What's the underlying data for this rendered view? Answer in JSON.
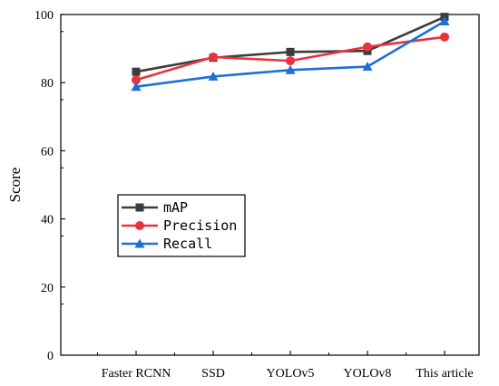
{
  "chart_data": {
    "type": "line",
    "categories": [
      "Faster RCNN",
      "SSD",
      "YOLOv5",
      "YOLOv8",
      "This article"
    ],
    "series": [
      {
        "name": "mAP",
        "values": [
          83.2,
          87.3,
          89.0,
          89.3,
          99.3
        ],
        "color": "#3c3c3c",
        "marker": "square"
      },
      {
        "name": "Precision",
        "values": [
          80.8,
          87.5,
          86.4,
          90.5,
          93.4
        ],
        "color": "#e8343c",
        "marker": "circle"
      },
      {
        "name": "Recall",
        "values": [
          78.8,
          81.8,
          83.7,
          84.7,
          98.0
        ],
        "color": "#1f6fd6",
        "marker": "triangle"
      }
    ],
    "xlabel": "",
    "ylabel": "Score",
    "ylim": [
      0,
      100
    ],
    "yticks": [
      0,
      20,
      40,
      60,
      80,
      100
    ],
    "grid": false,
    "legend_position": "left"
  }
}
